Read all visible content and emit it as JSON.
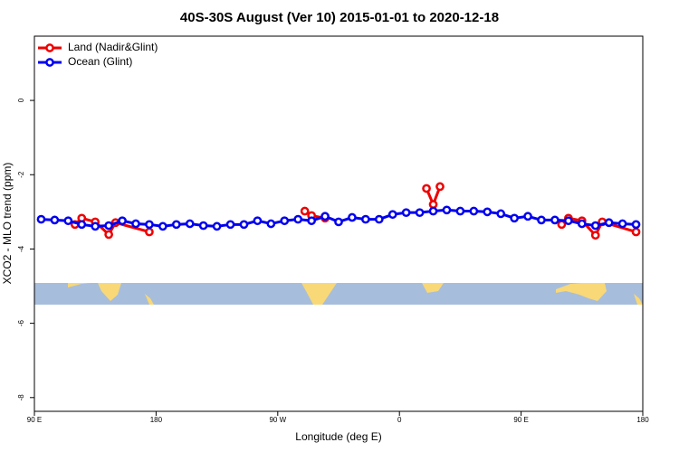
{
  "chart_data": {
    "type": "line",
    "title": "40S-30S August (Ver 10)   2015-01-01 to 2020-12-18",
    "xlabel": "Longitude (deg E)",
    "ylabel": "XCO2 - MLO trend (ppm)",
    "xlim": [
      90,
      540
    ],
    "ylim": [
      -8.37,
      1.73
    ],
    "xticks": [
      {
        "value": 90,
        "label": "90 E"
      },
      180,
      {
        "value": 270,
        "label": "90 W"
      },
      {
        "value": 360,
        "label": "0"
      },
      {
        "value": 450,
        "label": "90 E"
      },
      {
        "value": 540,
        "label": "180"
      }
    ],
    "yticks": [
      0,
      -2,
      -4,
      -6,
      -8
    ],
    "legend": "top-left",
    "series": [
      {
        "name": "Land (Nadir&Glint)",
        "color": "#ee0000",
        "x": [
          120,
          125,
          135,
          145,
          150,
          175,
          null,
          290,
          295,
          305,
          null,
          380,
          385,
          390,
          null,
          480,
          485,
          495,
          505,
          510,
          535
        ],
        "values": [
          -3.34,
          -3.17,
          -3.27,
          -3.61,
          -3.29,
          -3.54,
          null,
          -2.98,
          -3.1,
          -3.17,
          null,
          -2.37,
          -2.8,
          -2.32,
          null,
          -3.34,
          -3.17,
          -3.24,
          -3.63,
          -3.27,
          -3.54
        ]
      },
      {
        "name": "Ocean (Glint)",
        "color": "#0000ee",
        "x": [
          95,
          105,
          115,
          125,
          135,
          145,
          155,
          165,
          175,
          185,
          195,
          205,
          215,
          225,
          235,
          245,
          255,
          265,
          275,
          285,
          295,
          305,
          315,
          325,
          335,
          345,
          355,
          365,
          375,
          385,
          395,
          405,
          415,
          425,
          435,
          445,
          455,
          465,
          475,
          485,
          495,
          505,
          515,
          525,
          535
        ],
        "values": [
          -3.2,
          -3.22,
          -3.24,
          -3.34,
          -3.39,
          -3.37,
          -3.24,
          -3.32,
          -3.34,
          -3.39,
          -3.34,
          -3.32,
          -3.37,
          -3.39,
          -3.34,
          -3.34,
          -3.24,
          -3.32,
          -3.24,
          -3.2,
          -3.24,
          -3.12,
          -3.27,
          -3.15,
          -3.2,
          -3.2,
          -3.07,
          -3.02,
          -3.02,
          -2.98,
          -2.95,
          -2.98,
          -2.98,
          -3.0,
          -3.05,
          -3.17,
          -3.12,
          -3.22,
          -3.22,
          -3.24,
          -3.32,
          -3.37,
          -3.29,
          -3.32,
          -3.34
        ]
      }
    ]
  }
}
